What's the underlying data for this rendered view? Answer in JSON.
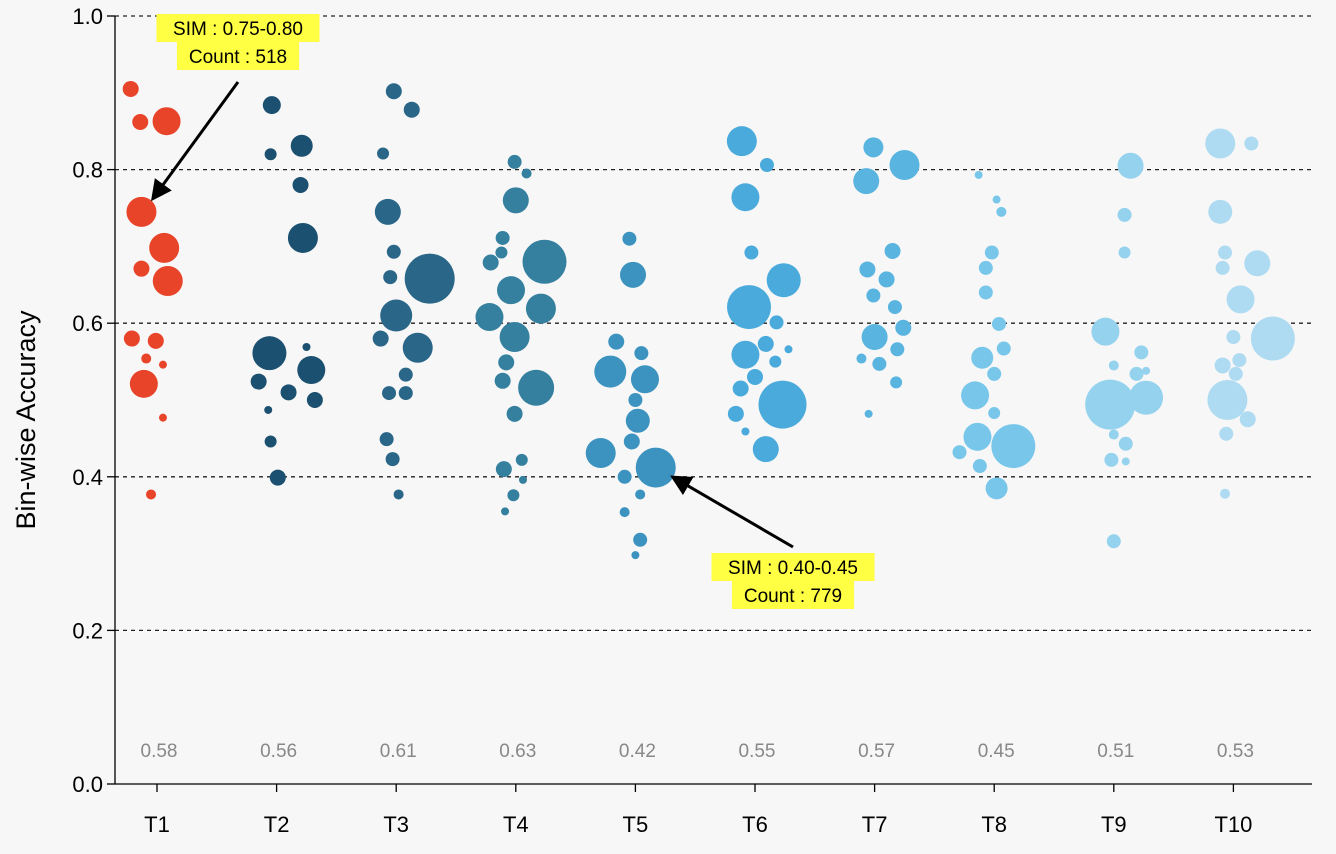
{
  "chart_data": {
    "type": "scatter",
    "ylabel": "Bin-wise Accuracy",
    "ylim": [
      0.0,
      1.0
    ],
    "yticks": [
      "0.0",
      "0.2",
      "0.4",
      "0.6",
      "0.8",
      "1.0"
    ],
    "grid": "horizontal dashed",
    "categories": [
      "T1",
      "T2",
      "T3",
      "T4",
      "T5",
      "T6",
      "T7",
      "T8",
      "T9",
      "T10"
    ],
    "category_values": [
      "0.58",
      "0.56",
      "0.61",
      "0.63",
      "0.42",
      "0.55",
      "0.57",
      "0.45",
      "0.51",
      "0.53"
    ],
    "colors": [
      "#e8442a",
      "#1c5070",
      "#2a6688",
      "#35809f",
      "#3c93bf",
      "#4aaadb",
      "#5ab4e0",
      "#78c6ea",
      "#95d2ee",
      "#aedbf2"
    ],
    "series": [
      {
        "category": "T1",
        "points": [
          {
            "offset": -0.22,
            "y": 0.905,
            "size": 8
          },
          {
            "offset": -0.14,
            "y": 0.862,
            "size": 8
          },
          {
            "offset": 0.08,
            "y": 0.863,
            "size": 14
          },
          {
            "offset": -0.13,
            "y": 0.745,
            "size": 15
          },
          {
            "offset": 0.06,
            "y": 0.698,
            "size": 15
          },
          {
            "offset": -0.13,
            "y": 0.671,
            "size": 8
          },
          {
            "offset": 0.09,
            "y": 0.655,
            "size": 15
          },
          {
            "offset": -0.21,
            "y": 0.58,
            "size": 8
          },
          {
            "offset": -0.01,
            "y": 0.577,
            "size": 8
          },
          {
            "offset": -0.09,
            "y": 0.554,
            "size": 5
          },
          {
            "offset": 0.05,
            "y": 0.546,
            "size": 4
          },
          {
            "offset": -0.11,
            "y": 0.521,
            "size": 14
          },
          {
            "offset": 0.05,
            "y": 0.477,
            "size": 4
          },
          {
            "offset": -0.05,
            "y": 0.377,
            "size": 5
          }
        ]
      },
      {
        "category": "T2",
        "points": [
          {
            "offset": -0.04,
            "y": 0.884,
            "size": 9
          },
          {
            "offset": 0.21,
            "y": 0.831,
            "size": 11
          },
          {
            "offset": -0.05,
            "y": 0.82,
            "size": 6
          },
          {
            "offset": 0.2,
            "y": 0.78,
            "size": 8
          },
          {
            "offset": 0.22,
            "y": 0.711,
            "size": 15
          },
          {
            "offset": -0.06,
            "y": 0.561,
            "size": 17
          },
          {
            "offset": 0.25,
            "y": 0.569,
            "size": 4
          },
          {
            "offset": 0.29,
            "y": 0.539,
            "size": 14
          },
          {
            "offset": -0.15,
            "y": 0.524,
            "size": 8
          },
          {
            "offset": 0.1,
            "y": 0.51,
            "size": 8
          },
          {
            "offset": 0.32,
            "y": 0.5,
            "size": 8
          },
          {
            "offset": -0.07,
            "y": 0.487,
            "size": 4
          },
          {
            "offset": -0.05,
            "y": 0.446,
            "size": 6
          },
          {
            "offset": 0.01,
            "y": 0.399,
            "size": 8
          }
        ]
      },
      {
        "category": "T3",
        "points": [
          {
            "offset": -0.02,
            "y": 0.902,
            "size": 8
          },
          {
            "offset": 0.13,
            "y": 0.878,
            "size": 8
          },
          {
            "offset": -0.11,
            "y": 0.821,
            "size": 6
          },
          {
            "offset": -0.07,
            "y": 0.745,
            "size": 13
          },
          {
            "offset": -0.02,
            "y": 0.693,
            "size": 7
          },
          {
            "offset": 0.28,
            "y": 0.658,
            "size": 25
          },
          {
            "offset": -0.05,
            "y": 0.66,
            "size": 7
          },
          {
            "offset": 0.0,
            "y": 0.61,
            "size": 16
          },
          {
            "offset": -0.13,
            "y": 0.58,
            "size": 8
          },
          {
            "offset": 0.18,
            "y": 0.568,
            "size": 15
          },
          {
            "offset": 0.08,
            "y": 0.533,
            "size": 7
          },
          {
            "offset": -0.06,
            "y": 0.509,
            "size": 7
          },
          {
            "offset": 0.08,
            "y": 0.509,
            "size": 7
          },
          {
            "offset": -0.08,
            "y": 0.449,
            "size": 7
          },
          {
            "offset": -0.03,
            "y": 0.423,
            "size": 7
          },
          {
            "offset": 0.02,
            "y": 0.377,
            "size": 5
          }
        ]
      },
      {
        "category": "T4",
        "points": [
          {
            "offset": -0.01,
            "y": 0.81,
            "size": 7
          },
          {
            "offset": 0.09,
            "y": 0.795,
            "size": 5
          },
          {
            "offset": 0.0,
            "y": 0.76,
            "size": 13
          },
          {
            "offset": -0.11,
            "y": 0.711,
            "size": 7
          },
          {
            "offset": -0.12,
            "y": 0.692,
            "size": 6
          },
          {
            "offset": 0.24,
            "y": 0.68,
            "size": 22
          },
          {
            "offset": -0.21,
            "y": 0.679,
            "size": 8
          },
          {
            "offset": -0.04,
            "y": 0.643,
            "size": 14
          },
          {
            "offset": 0.21,
            "y": 0.619,
            "size": 15
          },
          {
            "offset": -0.22,
            "y": 0.608,
            "size": 14
          },
          {
            "offset": -0.01,
            "y": 0.582,
            "size": 15
          },
          {
            "offset": -0.08,
            "y": 0.549,
            "size": 8
          },
          {
            "offset": -0.11,
            "y": 0.525,
            "size": 8
          },
          {
            "offset": 0.17,
            "y": 0.516,
            "size": 18
          },
          {
            "offset": -0.01,
            "y": 0.482,
            "size": 8
          },
          {
            "offset": -0.1,
            "y": 0.41,
            "size": 8
          },
          {
            "offset": 0.05,
            "y": 0.422,
            "size": 6
          },
          {
            "offset": 0.06,
            "y": 0.396,
            "size": 4
          },
          {
            "offset": -0.02,
            "y": 0.376,
            "size": 6
          },
          {
            "offset": -0.09,
            "y": 0.355,
            "size": 4
          }
        ]
      },
      {
        "category": "T5",
        "points": [
          {
            "offset": -0.05,
            "y": 0.71,
            "size": 7
          },
          {
            "offset": -0.02,
            "y": 0.663,
            "size": 13
          },
          {
            "offset": -0.16,
            "y": 0.576,
            "size": 8
          },
          {
            "offset": 0.05,
            "y": 0.561,
            "size": 7
          },
          {
            "offset": -0.21,
            "y": 0.537,
            "size": 16
          },
          {
            "offset": 0.08,
            "y": 0.527,
            "size": 14
          },
          {
            "offset": 0.0,
            "y": 0.5,
            "size": 7
          },
          {
            "offset": 0.02,
            "y": 0.473,
            "size": 12
          },
          {
            "offset": -0.03,
            "y": 0.446,
            "size": 8
          },
          {
            "offset": -0.29,
            "y": 0.431,
            "size": 15
          },
          {
            "offset": 0.17,
            "y": 0.412,
            "size": 20
          },
          {
            "offset": -0.09,
            "y": 0.4,
            "size": 7
          },
          {
            "offset": 0.04,
            "y": 0.377,
            "size": 5
          },
          {
            "offset": -0.09,
            "y": 0.354,
            "size": 5
          },
          {
            "offset": 0.04,
            "y": 0.318,
            "size": 7
          },
          {
            "offset": 0.0,
            "y": 0.298,
            "size": 4
          }
        ]
      },
      {
        "category": "T6",
        "points": [
          {
            "offset": -0.11,
            "y": 0.837,
            "size": 15
          },
          {
            "offset": 0.1,
            "y": 0.806,
            "size": 7
          },
          {
            "offset": -0.08,
            "y": 0.764,
            "size": 14
          },
          {
            "offset": -0.03,
            "y": 0.692,
            "size": 7
          },
          {
            "offset": 0.24,
            "y": 0.656,
            "size": 17
          },
          {
            "offset": -0.05,
            "y": 0.621,
            "size": 22
          },
          {
            "offset": 0.18,
            "y": 0.601,
            "size": 7
          },
          {
            "offset": -0.08,
            "y": 0.559,
            "size": 14
          },
          {
            "offset": 0.09,
            "y": 0.573,
            "size": 8
          },
          {
            "offset": 0.17,
            "y": 0.55,
            "size": 6
          },
          {
            "offset": 0.28,
            "y": 0.566,
            "size": 4
          },
          {
            "offset": 0.0,
            "y": 0.53,
            "size": 8
          },
          {
            "offset": -0.12,
            "y": 0.515,
            "size": 8
          },
          {
            "offset": 0.23,
            "y": 0.494,
            "size": 24
          },
          {
            "offset": -0.16,
            "y": 0.482,
            "size": 8
          },
          {
            "offset": -0.08,
            "y": 0.459,
            "size": 4
          },
          {
            "offset": 0.09,
            "y": 0.436,
            "size": 13
          }
        ]
      },
      {
        "category": "T7",
        "points": [
          {
            "offset": -0.01,
            "y": 0.829,
            "size": 10
          },
          {
            "offset": 0.25,
            "y": 0.806,
            "size": 15
          },
          {
            "offset": -0.07,
            "y": 0.785,
            "size": 13
          },
          {
            "offset": 0.15,
            "y": 0.694,
            "size": 8
          },
          {
            "offset": -0.06,
            "y": 0.67,
            "size": 8
          },
          {
            "offset": 0.1,
            "y": 0.657,
            "size": 8
          },
          {
            "offset": -0.01,
            "y": 0.636,
            "size": 7
          },
          {
            "offset": 0.17,
            "y": 0.621,
            "size": 7
          },
          {
            "offset": 0.24,
            "y": 0.594,
            "size": 8
          },
          {
            "offset": 0.0,
            "y": 0.582,
            "size": 13
          },
          {
            "offset": 0.19,
            "y": 0.566,
            "size": 7
          },
          {
            "offset": -0.11,
            "y": 0.554,
            "size": 5
          },
          {
            "offset": 0.04,
            "y": 0.547,
            "size": 7
          },
          {
            "offset": 0.18,
            "y": 0.523,
            "size": 6
          },
          {
            "offset": -0.05,
            "y": 0.482,
            "size": 4
          }
        ]
      },
      {
        "category": "T8",
        "points": [
          {
            "offset": -0.13,
            "y": 0.793,
            "size": 4
          },
          {
            "offset": 0.02,
            "y": 0.761,
            "size": 4
          },
          {
            "offset": 0.06,
            "y": 0.745,
            "size": 5
          },
          {
            "offset": -0.02,
            "y": 0.692,
            "size": 7
          },
          {
            "offset": -0.07,
            "y": 0.672,
            "size": 7
          },
          {
            "offset": -0.07,
            "y": 0.64,
            "size": 7
          },
          {
            "offset": 0.04,
            "y": 0.599,
            "size": 7
          },
          {
            "offset": 0.08,
            "y": 0.567,
            "size": 7
          },
          {
            "offset": -0.1,
            "y": 0.555,
            "size": 11
          },
          {
            "offset": 0.0,
            "y": 0.534,
            "size": 7
          },
          {
            "offset": -0.16,
            "y": 0.506,
            "size": 14
          },
          {
            "offset": 0.0,
            "y": 0.483,
            "size": 6
          },
          {
            "offset": -0.14,
            "y": 0.452,
            "size": 14
          },
          {
            "offset": 0.16,
            "y": 0.44,
            "size": 22
          },
          {
            "offset": -0.29,
            "y": 0.432,
            "size": 7
          },
          {
            "offset": -0.12,
            "y": 0.414,
            "size": 7
          },
          {
            "offset": 0.02,
            "y": 0.385,
            "size": 11
          }
        ]
      },
      {
        "category": "T9",
        "points": [
          {
            "offset": 0.14,
            "y": 0.805,
            "size": 13
          },
          {
            "offset": 0.09,
            "y": 0.741,
            "size": 7
          },
          {
            "offset": 0.09,
            "y": 0.692,
            "size": 6
          },
          {
            "offset": -0.07,
            "y": 0.589,
            "size": 14
          },
          {
            "offset": 0.23,
            "y": 0.562,
            "size": 7
          },
          {
            "offset": 0.0,
            "y": 0.545,
            "size": 5
          },
          {
            "offset": 0.19,
            "y": 0.534,
            "size": 7
          },
          {
            "offset": 0.27,
            "y": 0.538,
            "size": 4
          },
          {
            "offset": 0.27,
            "y": 0.503,
            "size": 17
          },
          {
            "offset": -0.03,
            "y": 0.494,
            "size": 25
          },
          {
            "offset": 0.0,
            "y": 0.455,
            "size": 5
          },
          {
            "offset": 0.1,
            "y": 0.443,
            "size": 7
          },
          {
            "offset": -0.02,
            "y": 0.422,
            "size": 7
          },
          {
            "offset": 0.1,
            "y": 0.42,
            "size": 4
          },
          {
            "offset": 0.0,
            "y": 0.316,
            "size": 7
          }
        ]
      },
      {
        "category": "T10",
        "points": [
          {
            "offset": -0.11,
            "y": 0.834,
            "size": 15
          },
          {
            "offset": 0.15,
            "y": 0.834,
            "size": 7
          },
          {
            "offset": -0.11,
            "y": 0.745,
            "size": 12
          },
          {
            "offset": -0.07,
            "y": 0.692,
            "size": 7
          },
          {
            "offset": 0.2,
            "y": 0.678,
            "size": 13
          },
          {
            "offset": -0.09,
            "y": 0.672,
            "size": 7
          },
          {
            "offset": 0.06,
            "y": 0.631,
            "size": 14
          },
          {
            "offset": 0.0,
            "y": 0.582,
            "size": 7
          },
          {
            "offset": 0.33,
            "y": 0.58,
            "size": 22
          },
          {
            "offset": 0.05,
            "y": 0.552,
            "size": 7
          },
          {
            "offset": -0.09,
            "y": 0.545,
            "size": 8
          },
          {
            "offset": 0.02,
            "y": 0.534,
            "size": 7
          },
          {
            "offset": 0.02,
            "y": 0.51,
            "size": 4
          },
          {
            "offset": -0.05,
            "y": 0.5,
            "size": 20
          },
          {
            "offset": 0.12,
            "y": 0.475,
            "size": 8
          },
          {
            "offset": -0.06,
            "y": 0.456,
            "size": 7
          },
          {
            "offset": -0.07,
            "y": 0.378,
            "size": 5
          }
        ]
      }
    ],
    "annotations": [
      {
        "lines": [
          "SIM : 0.75-0.80",
          "Count : 518"
        ],
        "category": "T1",
        "target_offset": -0.13,
        "target_y": 0.745,
        "background": "#ffff44"
      },
      {
        "lines": [
          "SIM : 0.40-0.45",
          "Count : 779"
        ],
        "category": "T5",
        "target_offset": 0.17,
        "target_y": 0.412,
        "background": "#ffff44"
      }
    ]
  }
}
